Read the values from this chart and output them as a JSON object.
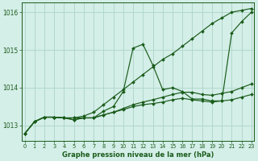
{
  "title": "Graphe pression niveau de la mer (hPa)",
  "bg_color": "#d4eee8",
  "grid_color": "#b0d8cc",
  "line_color": "#1a5c1a",
  "xlim": [
    -0.3,
    23.3
  ],
  "ylim": [
    1012.6,
    1016.25
  ],
  "yticks": [
    1013,
    1014,
    1015,
    1016
  ],
  "xticks": [
    0,
    1,
    2,
    3,
    4,
    5,
    6,
    7,
    8,
    9,
    10,
    11,
    12,
    13,
    14,
    15,
    16,
    17,
    18,
    19,
    20,
    21,
    22,
    23
  ],
  "series": [
    [
      1012.78,
      1013.1,
      1013.22,
      1013.22,
      1013.2,
      1013.2,
      1013.2,
      1013.2,
      1013.38,
      1013.5,
      1013.9,
      1015.05,
      1015.15,
      1014.6,
      1013.95,
      1014.0,
      1013.9,
      1013.7,
      1013.7,
      1013.65,
      1013.65,
      1015.45,
      1015.75,
      1016.0
    ],
    [
      1012.78,
      1013.1,
      1013.22,
      1013.22,
      1013.2,
      1013.2,
      1013.25,
      1013.35,
      1013.55,
      1013.75,
      1013.95,
      1014.15,
      1014.35,
      1014.55,
      1014.75,
      1014.9,
      1015.1,
      1015.3,
      1015.5,
      1015.7,
      1015.85,
      1016.0,
      1016.05,
      1016.1
    ],
    [
      1012.78,
      1013.1,
      1013.22,
      1013.22,
      1013.2,
      1013.15,
      1013.2,
      1013.2,
      1013.28,
      1013.35,
      1013.42,
      1013.5,
      1013.55,
      1013.58,
      1013.62,
      1013.68,
      1013.72,
      1013.68,
      1013.65,
      1013.62,
      1013.65,
      1013.68,
      1013.75,
      1013.82
    ],
    [
      1012.78,
      1013.1,
      1013.22,
      1013.22,
      1013.2,
      1013.15,
      1013.2,
      1013.2,
      1013.28,
      1013.35,
      1013.45,
      1013.55,
      1013.62,
      1013.68,
      1013.75,
      1013.82,
      1013.88,
      1013.88,
      1013.82,
      1013.8,
      1013.85,
      1013.9,
      1014.0,
      1014.1
    ]
  ]
}
